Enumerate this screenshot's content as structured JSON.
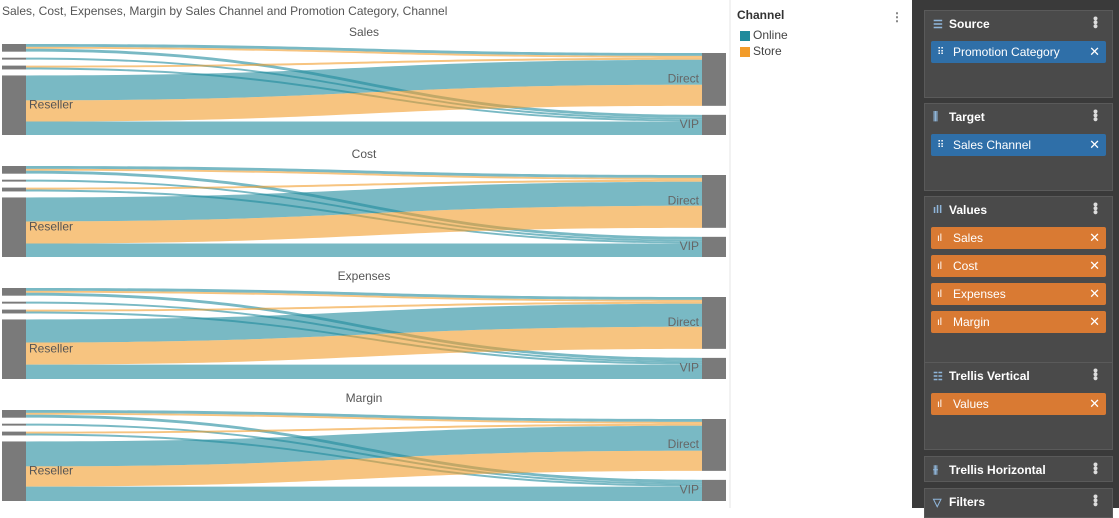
{
  "chart_data": {
    "type": "sankey",
    "title": "Sales, Cost, Expenses, Margin by Sales Channel and Promotion Category, Channel",
    "legend_title": "Channel",
    "series": [
      {
        "name": "Online",
        "color": "#1f8a9c"
      },
      {
        "name": "Store",
        "color": "#f29c2b"
      }
    ],
    "panels": [
      {
        "title": "Sales",
        "sources": [
          null,
          null,
          null,
          "Reseller"
        ],
        "targets": [
          "Direct",
          "VIP"
        ],
        "links": [
          {
            "source": 0,
            "target": 0,
            "series": 0,
            "value": 3
          },
          {
            "source": 0,
            "target": 0,
            "series": 1,
            "value": 2
          },
          {
            "source": 0,
            "target": 1,
            "series": 0,
            "value": 3
          },
          {
            "source": 1,
            "target": 1,
            "series": 0,
            "value": 2
          },
          {
            "source": 2,
            "target": 0,
            "series": 1,
            "value": 2
          },
          {
            "source": 2,
            "target": 1,
            "series": 0,
            "value": 2
          },
          {
            "source": 3,
            "target": 0,
            "series": 0,
            "value": 26
          },
          {
            "source": 3,
            "target": 0,
            "series": 1,
            "value": 22
          },
          {
            "source": 3,
            "target": 1,
            "series": 0,
            "value": 14
          }
        ]
      },
      {
        "title": "Cost",
        "sources": [
          null,
          null,
          null,
          "Reseller"
        ],
        "targets": [
          "Direct",
          "VIP"
        ],
        "links": [
          {
            "source": 0,
            "target": 0,
            "series": 0,
            "value": 3
          },
          {
            "source": 0,
            "target": 0,
            "series": 1,
            "value": 2
          },
          {
            "source": 0,
            "target": 1,
            "series": 0,
            "value": 3
          },
          {
            "source": 1,
            "target": 1,
            "series": 0,
            "value": 2
          },
          {
            "source": 2,
            "target": 0,
            "series": 1,
            "value": 2
          },
          {
            "source": 2,
            "target": 1,
            "series": 0,
            "value": 2
          },
          {
            "source": 3,
            "target": 0,
            "series": 0,
            "value": 25
          },
          {
            "source": 3,
            "target": 0,
            "series": 1,
            "value": 23
          },
          {
            "source": 3,
            "target": 1,
            "series": 0,
            "value": 14
          }
        ]
      },
      {
        "title": "Expenses",
        "sources": [
          null,
          null,
          null,
          "Reseller"
        ],
        "targets": [
          "Direct",
          "VIP"
        ],
        "links": [
          {
            "source": 0,
            "target": 0,
            "series": 0,
            "value": 3
          },
          {
            "source": 0,
            "target": 0,
            "series": 1,
            "value": 2
          },
          {
            "source": 0,
            "target": 1,
            "series": 0,
            "value": 3
          },
          {
            "source": 1,
            "target": 1,
            "series": 0,
            "value": 2
          },
          {
            "source": 2,
            "target": 0,
            "series": 1,
            "value": 2
          },
          {
            "source": 2,
            "target": 1,
            "series": 0,
            "value": 2
          },
          {
            "source": 3,
            "target": 0,
            "series": 0,
            "value": 24
          },
          {
            "source": 3,
            "target": 0,
            "series": 1,
            "value": 23
          },
          {
            "source": 3,
            "target": 1,
            "series": 0,
            "value": 15
          }
        ]
      },
      {
        "title": "Margin",
        "sources": [
          null,
          null,
          null,
          "Reseller"
        ],
        "targets": [
          "Direct",
          "VIP"
        ],
        "links": [
          {
            "source": 0,
            "target": 0,
            "series": 0,
            "value": 3
          },
          {
            "source": 0,
            "target": 0,
            "series": 1,
            "value": 2
          },
          {
            "source": 0,
            "target": 1,
            "series": 0,
            "value": 3
          },
          {
            "source": 1,
            "target": 1,
            "series": 0,
            "value": 2
          },
          {
            "source": 2,
            "target": 0,
            "series": 1,
            "value": 2
          },
          {
            "source": 2,
            "target": 1,
            "series": 0,
            "value": 2
          },
          {
            "source": 3,
            "target": 0,
            "series": 0,
            "value": 26
          },
          {
            "source": 3,
            "target": 0,
            "series": 1,
            "value": 21
          },
          {
            "source": 3,
            "target": 1,
            "series": 0,
            "value": 15
          }
        ]
      }
    ]
  },
  "field_panel": {
    "sections": [
      {
        "title": "Source",
        "fields": [
          "Promotion Category"
        ],
        "color": "#2f6fa8"
      },
      {
        "title": "Target",
        "fields": [
          "Sales Channel"
        ],
        "color": "#2f6fa8"
      },
      {
        "title": "Values",
        "fields": [
          "Sales",
          "Cost",
          "Expenses",
          "Margin"
        ],
        "color": "#d97a33"
      },
      {
        "title": "Trellis Vertical",
        "fields": [
          "Values"
        ],
        "color": "#d97a33"
      },
      {
        "title": "Trellis Horizontal",
        "fields": []
      },
      {
        "title": "Filters",
        "fields": []
      }
    ]
  }
}
